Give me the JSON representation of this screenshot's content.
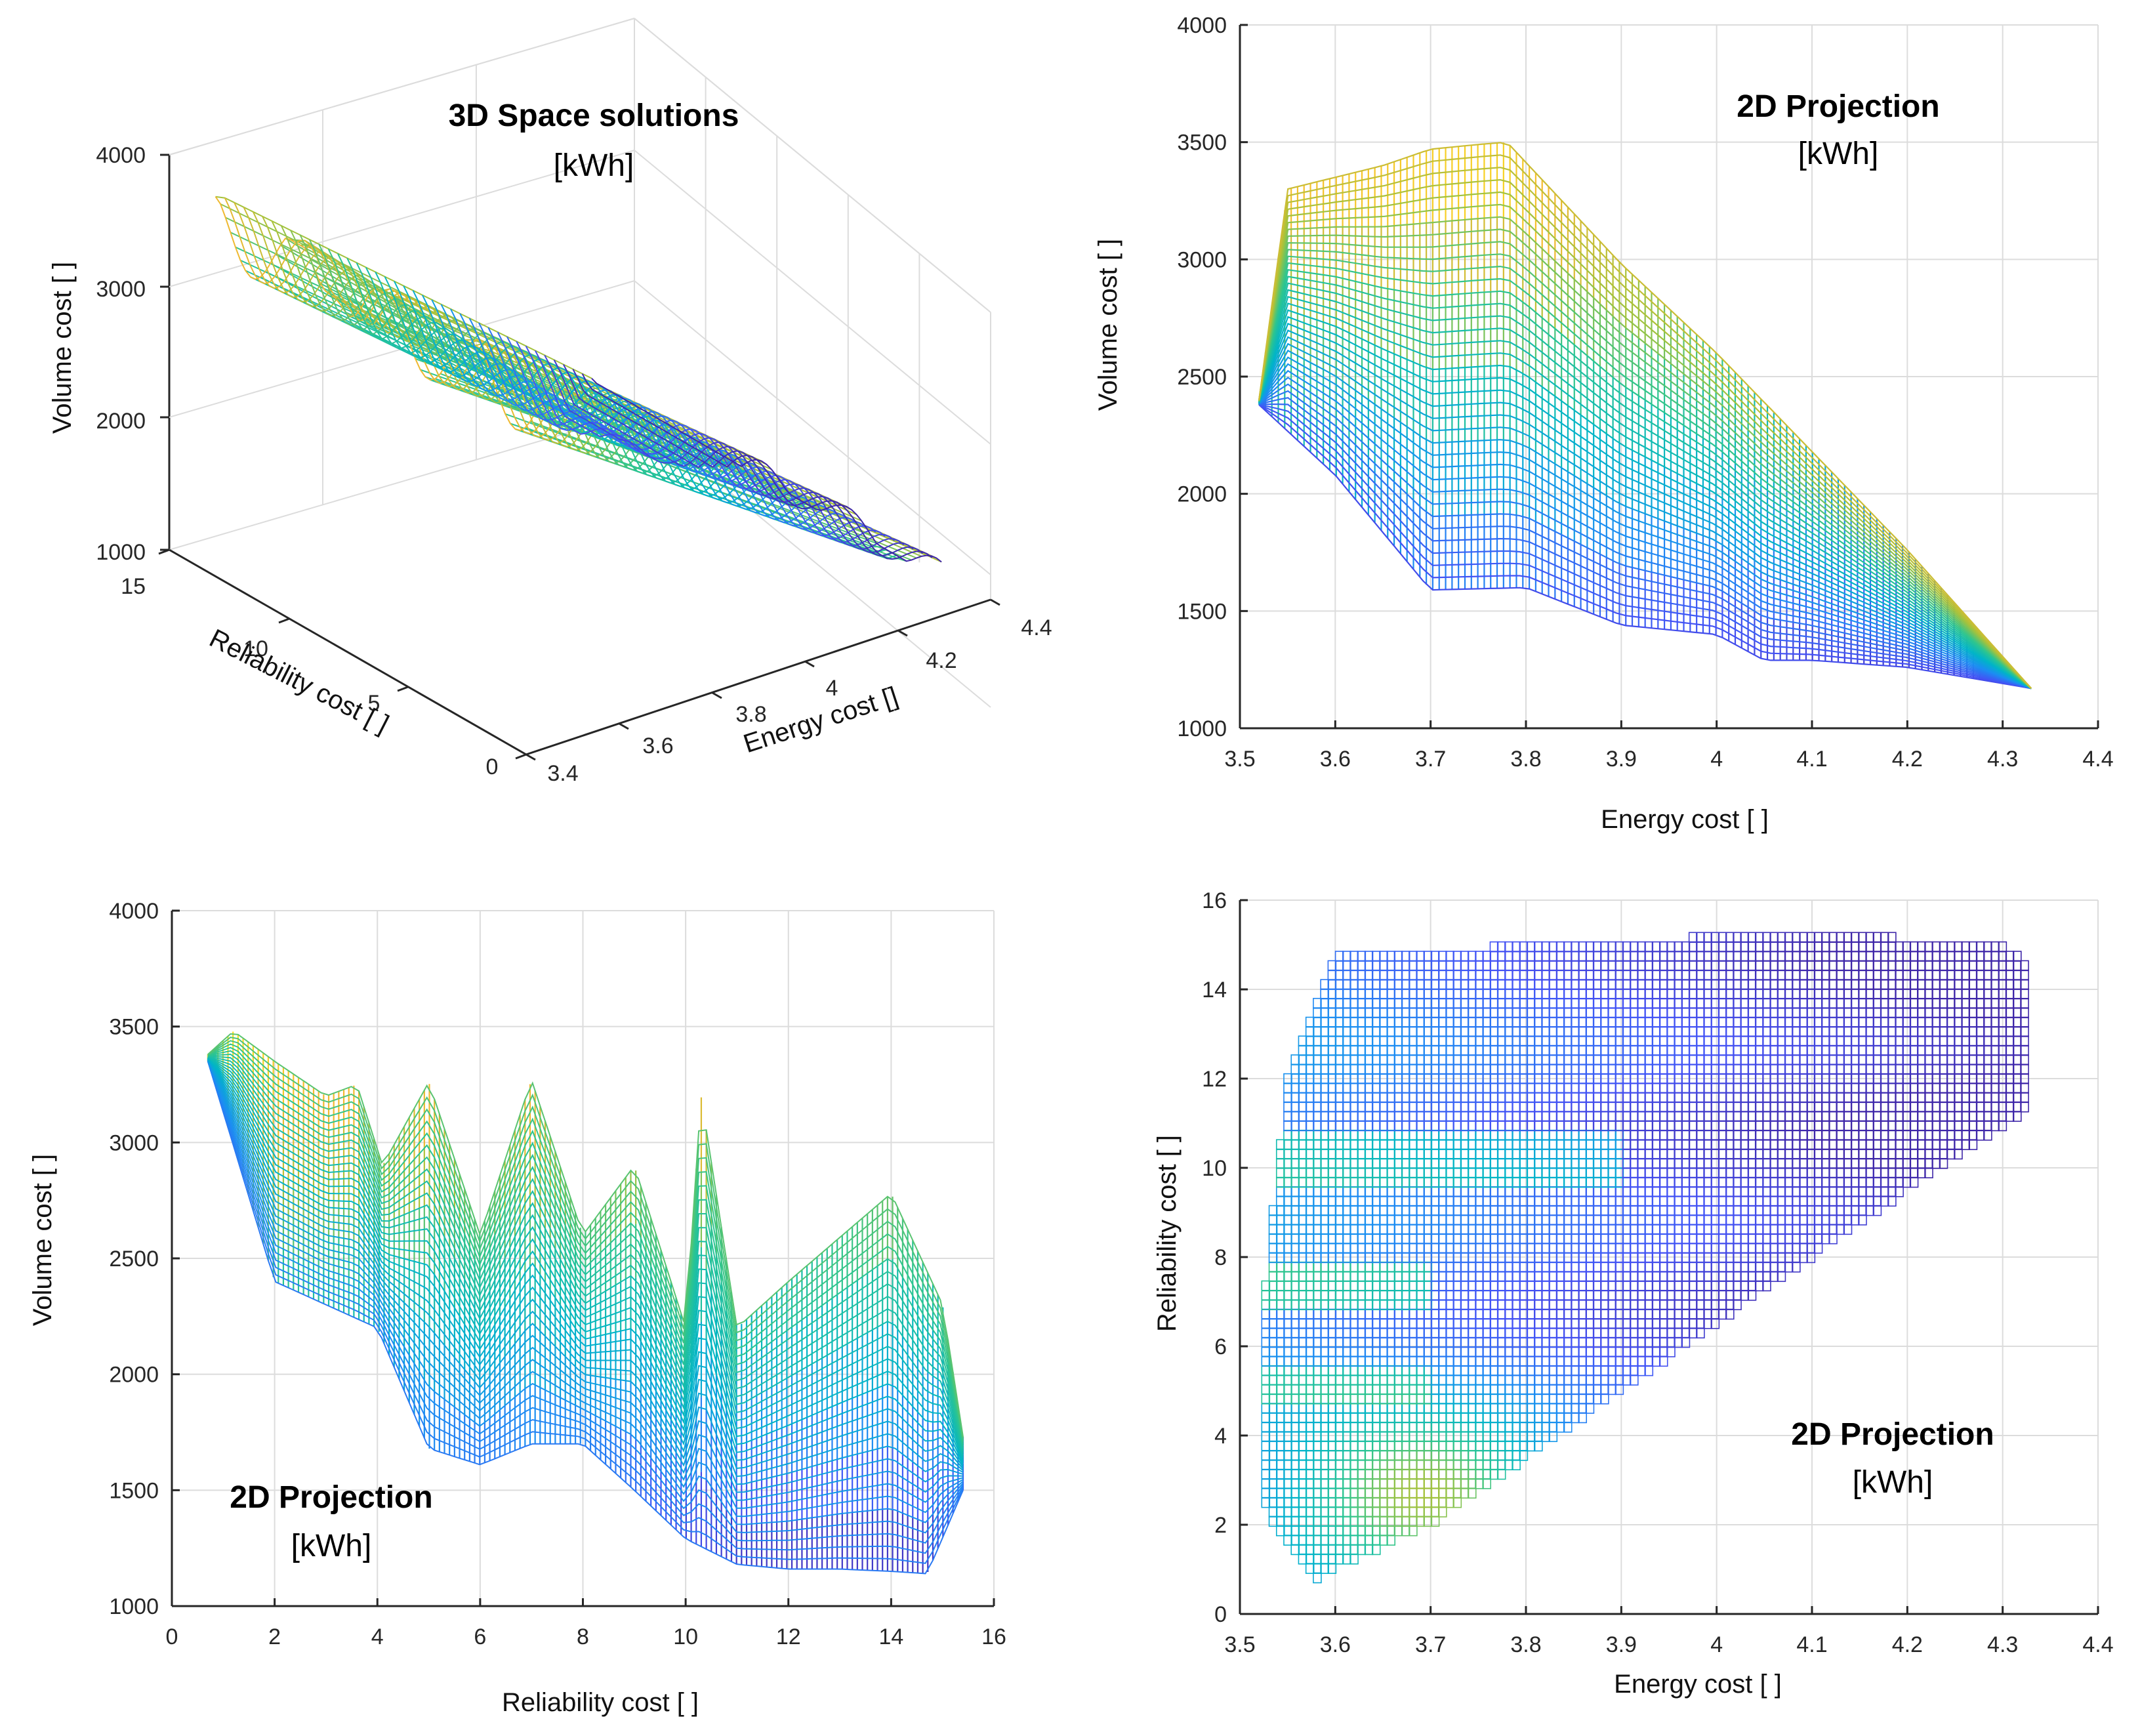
{
  "figure": {
    "colormap": [
      "#3e26a8",
      "#4352f5",
      "#1b8ef2",
      "#00b4c8",
      "#2dc58f",
      "#a8c23a",
      "#f5b830",
      "#f9e718"
    ]
  },
  "chart_data": [
    {
      "id": "top-left",
      "type": "surface3d",
      "title": "3D Space solutions",
      "unit": "[kWh]",
      "xlabel": "Energy cost []",
      "ylabel": "Reliability cost [ ]",
      "zlabel": "Volume cost [ ]",
      "xlim": [
        3.4,
        4.4
      ],
      "ylim": [
        0,
        15
      ],
      "zlim": [
        1000,
        4000
      ],
      "xticks": [
        "3.4",
        "3.6",
        "3.8",
        "4",
        "4.2",
        "4.4"
      ],
      "yticks": [
        "0",
        "5",
        "10",
        "15"
      ],
      "zticks": [
        "1000",
        "2000",
        "3000",
        "4000"
      ],
      "energy_range": [
        3.52,
        4.33
      ],
      "reliability_range": [
        0.7,
        15.4
      ],
      "volume_range": [
        1150,
        3500
      ]
    },
    {
      "id": "top-right",
      "type": "line",
      "title": "2D Projection",
      "unit": "[kWh]",
      "xlabel": "Energy cost [ ]",
      "ylabel": "Volume cost [ ]",
      "xlim": [
        3.5,
        4.4
      ],
      "ylim": [
        1000,
        4000
      ],
      "xticks": [
        3.5,
        3.6,
        3.7,
        3.8,
        3.9,
        4,
        4.1,
        4.2,
        4.3,
        4.4
      ],
      "xtick_labels": [
        "3.5",
        "3.6",
        "3.7",
        "3.8",
        "3.9",
        "4",
        "4.1",
        "4.2",
        "4.3",
        "4.4"
      ],
      "yticks": [
        1000,
        1500,
        2000,
        2500,
        3000,
        3500,
        4000
      ],
      "ytick_labels": [
        "1000",
        "1500",
        "2000",
        "2500",
        "3000",
        "3500",
        "4000"
      ],
      "upper_envelope": {
        "x": [
          3.52,
          3.55,
          3.6,
          3.65,
          3.7,
          3.75,
          3.78,
          3.9,
          4.0,
          4.1,
          4.2,
          4.33
        ],
        "y": [
          2400,
          3300,
          3350,
          3400,
          3470,
          3490,
          3500,
          2980,
          2600,
          2180,
          1760,
          1170
        ]
      },
      "lower_envelope": {
        "x": [
          3.52,
          3.6,
          3.7,
          3.8,
          3.9,
          4.0,
          4.05,
          4.1,
          4.2,
          4.33
        ],
        "y": [
          2380,
          2080,
          1590,
          1600,
          1440,
          1400,
          1290,
          1290,
          1260,
          1170
        ]
      }
    },
    {
      "id": "bottom-left",
      "type": "line",
      "title": "2D Projection",
      "unit": "[kWh]",
      "xlabel": "Reliability cost [ ]",
      "ylabel": "Volume cost [ ]",
      "xlim": [
        0,
        16
      ],
      "ylim": [
        1000,
        4000
      ],
      "xticks": [
        0,
        2,
        4,
        6,
        8,
        10,
        12,
        14,
        16
      ],
      "xtick_labels": [
        "0",
        "2",
        "4",
        "6",
        "8",
        "10",
        "12",
        "14",
        "16"
      ],
      "yticks": [
        1000,
        1500,
        2000,
        2500,
        3000,
        3500,
        4000
      ],
      "ytick_labels": [
        "1000",
        "1500",
        "2000",
        "2500",
        "3000",
        "3500",
        "4000"
      ],
      "upper_envelope": {
        "x": [
          0.7,
          1.2,
          2.0,
          3.0,
          3.6,
          4.1,
          5.0,
          6.0,
          7.0,
          8.0,
          9.0,
          10.0,
          10.3,
          11.0,
          12.0,
          14.0,
          15.0,
          15.4
        ],
        "y": [
          3380,
          3480,
          3350,
          3200,
          3250,
          2900,
          3260,
          2600,
          3270,
          2600,
          2900,
          2200,
          3200,
          2200,
          2400,
          2780,
          2300,
          1730
        ]
      },
      "lower_envelope": {
        "x": [
          0.7,
          2.0,
          3.0,
          4.0,
          5.0,
          6.0,
          7.0,
          8.0,
          9.0,
          10.0,
          11.0,
          12.0,
          13.0,
          14.0,
          14.7,
          15.4
        ],
        "y": [
          3350,
          2400,
          2300,
          2200,
          1680,
          1610,
          1700,
          1700,
          1500,
          1290,
          1180,
          1160,
          1160,
          1150,
          1140,
          1500
        ]
      }
    },
    {
      "id": "bottom-right",
      "type": "scatter",
      "title": "2D Projection",
      "unit": "[kWh]",
      "xlabel": "Energy cost [ ]",
      "ylabel": "Reliability cost [ ]",
      "xlim": [
        3.5,
        4.4
      ],
      "ylim": [
        0,
        16
      ],
      "xticks": [
        3.5,
        3.6,
        3.7,
        3.8,
        3.9,
        4,
        4.1,
        4.2,
        4.3,
        4.4
      ],
      "xtick_labels": [
        "3.5",
        "3.6",
        "3.7",
        "3.8",
        "3.9",
        "4",
        "4.1",
        "4.2",
        "4.3",
        "4.4"
      ],
      "yticks": [
        0,
        2,
        4,
        6,
        8,
        10,
        12,
        14,
        16
      ],
      "ytick_labels": [
        "0",
        "2",
        "4",
        "6",
        "8",
        "10",
        "12",
        "14",
        "16"
      ],
      "region": {
        "x": [
          3.52,
          3.52,
          3.55,
          3.6,
          3.8,
          4.1,
          4.3,
          4.33,
          4.33,
          4.22,
          4.1,
          3.9,
          3.7,
          3.58,
          3.52
        ],
        "y": [
          2.5,
          6.2,
          12.0,
          14.8,
          15.0,
          15.3,
          15.0,
          14.6,
          11.3,
          9.8,
          8.0,
          5.0,
          2.0,
          0.8,
          2.5
        ]
      }
    }
  ]
}
